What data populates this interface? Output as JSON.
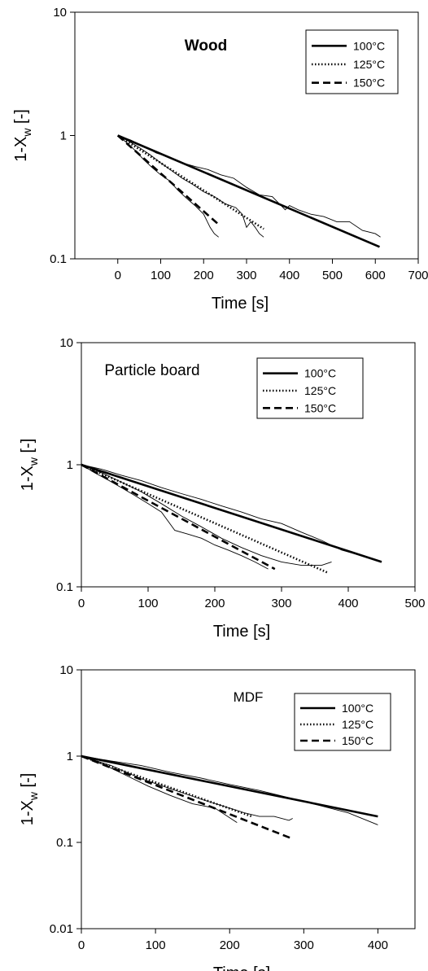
{
  "chart_data": [
    {
      "type": "line",
      "title": "Wood",
      "xlabel": "Time [s]",
      "ylabel": "1-X",
      "ylabel_sub": "w",
      "ylabel_suffix": " [-]",
      "yscale": "log",
      "xlim": [
        -100,
        700
      ],
      "ylim": [
        0.1,
        10
      ],
      "x_ticks": [
        0,
        100,
        200,
        300,
        400,
        500,
        600,
        700
      ],
      "y_ticks": [
        0.1,
        1,
        10
      ],
      "y_tick_labels": [
        "0.1",
        "1",
        "10"
      ],
      "legend_position": "top-right",
      "series": [
        {
          "name": "100°C",
          "style": "solid",
          "x": [
            0,
            610
          ],
          "y": [
            1.0,
            0.125
          ]
        },
        {
          "name": "125°C",
          "style": "dotted",
          "x": [
            0,
            340
          ],
          "y": [
            1.0,
            0.175
          ]
        },
        {
          "name": "150°C",
          "style": "dashed",
          "x": [
            0,
            235
          ],
          "y": [
            1.0,
            0.19
          ]
        }
      ],
      "measured": [
        {
          "x": [
            0,
            30,
            60,
            90,
            120,
            150,
            180,
            210,
            240,
            270,
            300,
            330,
            360,
            390,
            400,
            420,
            450,
            480,
            510,
            540,
            570,
            600,
            612
          ],
          "y": [
            1.0,
            0.92,
            0.82,
            0.72,
            0.67,
            0.6,
            0.56,
            0.53,
            0.48,
            0.45,
            0.38,
            0.33,
            0.32,
            0.25,
            0.27,
            0.25,
            0.23,
            0.22,
            0.2,
            0.2,
            0.17,
            0.16,
            0.15
          ]
        },
        {
          "x": [
            0,
            25,
            50,
            75,
            100,
            125,
            150,
            175,
            200,
            225,
            250,
            275,
            290,
            300,
            310,
            320,
            330,
            340
          ],
          "y": [
            1.0,
            0.9,
            0.8,
            0.7,
            0.6,
            0.52,
            0.45,
            0.4,
            0.35,
            0.32,
            0.28,
            0.26,
            0.23,
            0.18,
            0.2,
            0.18,
            0.16,
            0.15
          ]
        },
        {
          "x": [
            0,
            20,
            40,
            60,
            80,
            100,
            120,
            140,
            160,
            180,
            200,
            215,
            225,
            235
          ],
          "y": [
            1.0,
            0.88,
            0.76,
            0.64,
            0.55,
            0.48,
            0.43,
            0.36,
            0.31,
            0.27,
            0.23,
            0.18,
            0.16,
            0.15
          ]
        }
      ]
    },
    {
      "type": "line",
      "title": "Particle board",
      "xlabel": "Time [s]",
      "ylabel": "1-X",
      "ylabel_sub": "w",
      "ylabel_suffix": " [-]",
      "yscale": "log",
      "xlim": [
        0,
        500
      ],
      "ylim": [
        0.1,
        10
      ],
      "x_ticks": [
        0,
        100,
        200,
        300,
        400,
        500
      ],
      "y_ticks": [
        0.1,
        1,
        10
      ],
      "y_tick_labels": [
        "0.1",
        "1",
        "10"
      ],
      "legend_position": "top-right",
      "series": [
        {
          "name": "100°C",
          "style": "solid",
          "x": [
            0,
            450
          ],
          "y": [
            1.0,
            0.16
          ]
        },
        {
          "name": "125°C",
          "style": "dotted",
          "x": [
            0,
            370
          ],
          "y": [
            1.0,
            0.13
          ]
        },
        {
          "name": "150°C",
          "style": "dashed",
          "x": [
            0,
            290
          ],
          "y": [
            1.0,
            0.14
          ]
        }
      ],
      "measured": [
        {
          "x": [
            0,
            30,
            60,
            90,
            120,
            150,
            180,
            210,
            240,
            270,
            300,
            330,
            360,
            390,
            420,
            450
          ],
          "y": [
            1.0,
            0.92,
            0.82,
            0.74,
            0.65,
            0.58,
            0.52,
            0.46,
            0.41,
            0.36,
            0.33,
            0.28,
            0.24,
            0.2,
            0.18,
            0.16
          ]
        },
        {
          "x": [
            0,
            30,
            60,
            90,
            120,
            150,
            180,
            210,
            240,
            270,
            300,
            330,
            360,
            375
          ],
          "y": [
            1.0,
            0.86,
            0.72,
            0.6,
            0.48,
            0.38,
            0.31,
            0.25,
            0.21,
            0.18,
            0.16,
            0.15,
            0.15,
            0.16
          ]
        },
        {
          "x": [
            0,
            20,
            40,
            60,
            80,
            100,
            120,
            140,
            160,
            180,
            200,
            220,
            240,
            260,
            280
          ],
          "y": [
            1.0,
            0.86,
            0.75,
            0.65,
            0.56,
            0.48,
            0.41,
            0.29,
            0.27,
            0.25,
            0.22,
            0.2,
            0.18,
            0.16,
            0.14
          ]
        }
      ]
    },
    {
      "type": "line",
      "title": "MDF",
      "xlabel": "Time [s]",
      "ylabel": "1-X",
      "ylabel_sub": "w",
      "ylabel_suffix": " [-]",
      "yscale": "log",
      "xlim": [
        0,
        450
      ],
      "ylim": [
        0.01,
        10
      ],
      "x_ticks": [
        0,
        100,
        200,
        300,
        400
      ],
      "y_ticks": [
        0.01,
        0.1,
        1,
        10
      ],
      "y_tick_labels": [
        "0.01",
        "0.1",
        "1",
        "10"
      ],
      "legend_position": "top-right",
      "series": [
        {
          "name": "100°C",
          "style": "solid",
          "x": [
            0,
            400
          ],
          "y": [
            1.0,
            0.2
          ]
        },
        {
          "name": "125°C",
          "style": "dotted",
          "x": [
            0,
            230
          ],
          "y": [
            1.0,
            0.2
          ]
        },
        {
          "name": "150°C",
          "style": "dashed",
          "x": [
            0,
            285
          ],
          "y": [
            1.0,
            0.11
          ]
        }
      ],
      "measured": [
        {
          "x": [
            0,
            40,
            80,
            120,
            160,
            200,
            240,
            280,
            320,
            360,
            400
          ],
          "y": [
            1.0,
            0.88,
            0.78,
            0.65,
            0.56,
            0.47,
            0.4,
            0.33,
            0.27,
            0.22,
            0.16
          ]
        },
        {
          "x": [
            0,
            40,
            80,
            120,
            160,
            200,
            220,
            240,
            260,
            280,
            285
          ],
          "y": [
            1.0,
            0.78,
            0.55,
            0.42,
            0.32,
            0.25,
            0.22,
            0.2,
            0.2,
            0.18,
            0.19
          ]
        },
        {
          "x": [
            0,
            30,
            60,
            90,
            120,
            150,
            180,
            210
          ],
          "y": [
            1.0,
            0.8,
            0.6,
            0.45,
            0.35,
            0.28,
            0.25,
            0.17
          ]
        }
      ]
    }
  ]
}
